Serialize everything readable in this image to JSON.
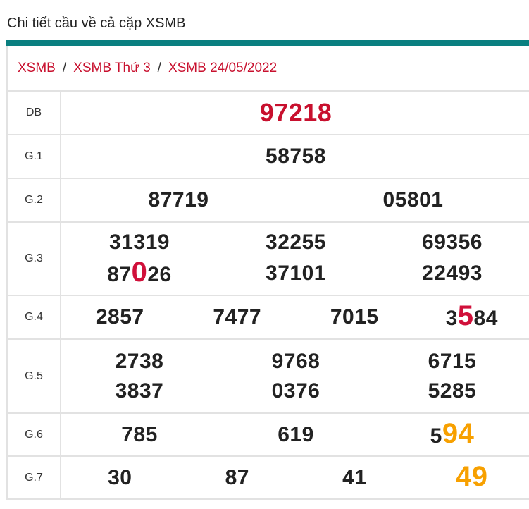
{
  "title": "Chi tiết cầu về cả cặp XSMB",
  "colors": {
    "accent": "#0a7f80",
    "red": "#d0103a",
    "orange": "#f7a000"
  },
  "breadcrumb": [
    "XSMB",
    "XSMB Thứ 3",
    "XSMB 24/05/2022"
  ],
  "breadcrumb_separator": "/",
  "prizes": [
    {
      "label": "DB",
      "cols": 1,
      "numbers": [
        {
          "text": "97218"
        }
      ]
    },
    {
      "label": "G.1",
      "cols": 1,
      "numbers": [
        {
          "text": "58758"
        }
      ]
    },
    {
      "label": "G.2",
      "cols": 2,
      "numbers": [
        {
          "text": "87719"
        },
        {
          "text": "05801"
        }
      ]
    },
    {
      "label": "G.3",
      "cols": 3,
      "numbers": [
        {
          "text": "31319"
        },
        {
          "text": "32255"
        },
        {
          "text": "69356"
        },
        {
          "text": "87",
          "hl": "0",
          "hl_color": "red",
          "after": "26"
        },
        {
          "text": "37101"
        },
        {
          "text": "22493"
        }
      ]
    },
    {
      "label": "G.4",
      "cols": 4,
      "numbers": [
        {
          "text": "2857"
        },
        {
          "text": "7477"
        },
        {
          "text": "7015"
        },
        {
          "text": "3",
          "hl": "5",
          "hl_color": "red",
          "after": "84"
        }
      ]
    },
    {
      "label": "G.5",
      "cols": 3,
      "numbers": [
        {
          "text": "2738"
        },
        {
          "text": "9768"
        },
        {
          "text": "6715"
        },
        {
          "text": "3837"
        },
        {
          "text": "0376"
        },
        {
          "text": "5285"
        }
      ]
    },
    {
      "label": "G.6",
      "cols": 3,
      "numbers": [
        {
          "text": "785"
        },
        {
          "text": "619"
        },
        {
          "text": "5",
          "hl": "94",
          "hl_color": "orange",
          "after": ""
        }
      ]
    },
    {
      "label": "G.7",
      "cols": 4,
      "numbers": [
        {
          "text": "30"
        },
        {
          "text": "87"
        },
        {
          "text": "41"
        },
        {
          "text": "",
          "hl": "49",
          "hl_color": "orange",
          "after": ""
        }
      ]
    }
  ]
}
